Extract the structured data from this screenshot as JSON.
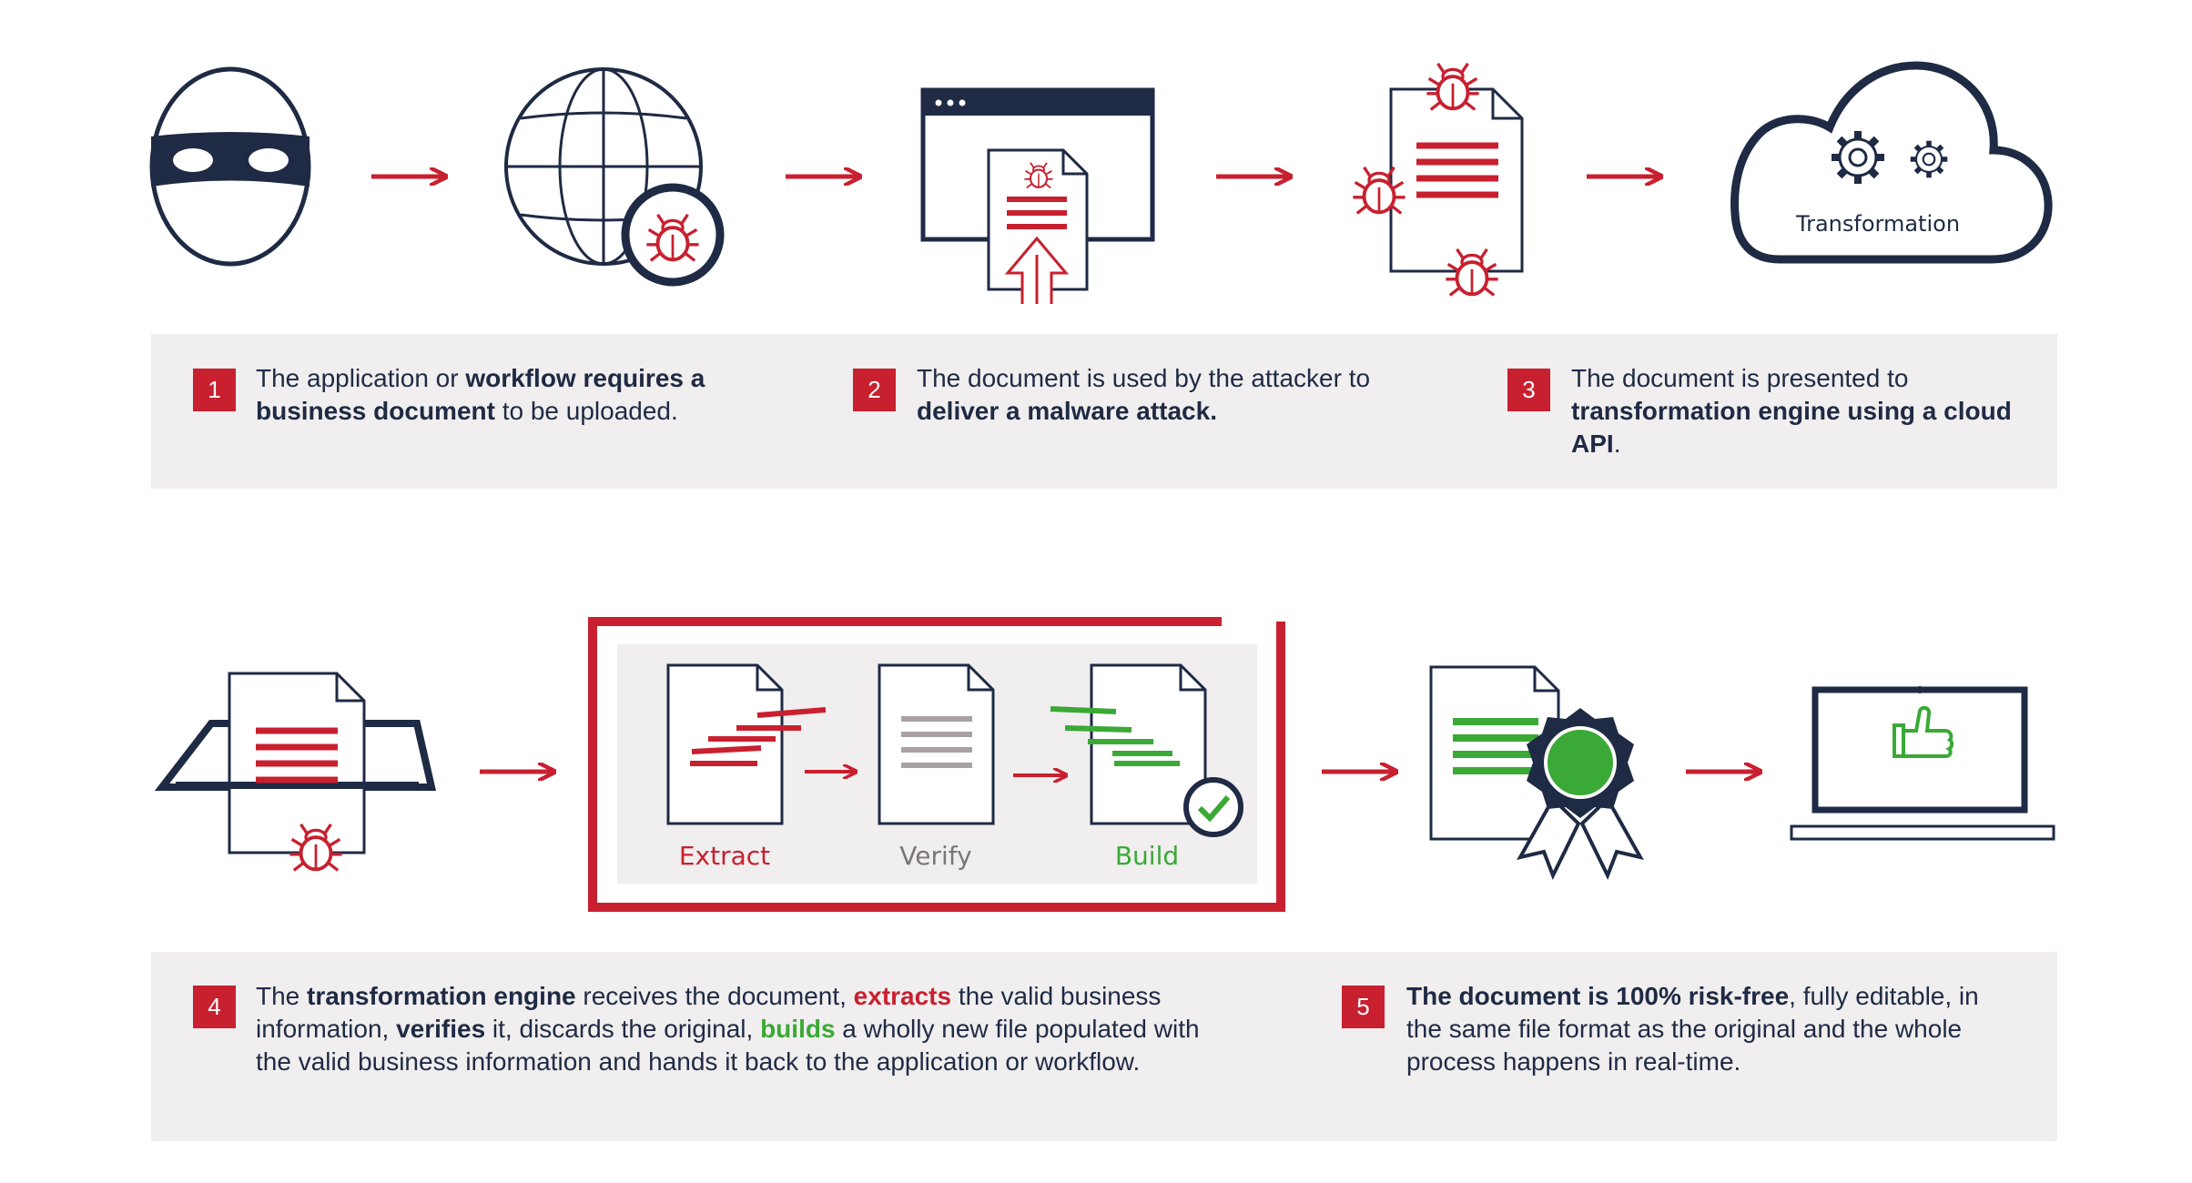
{
  "cloud": {
    "label": "Transformation"
  },
  "process": {
    "extract": "Extract",
    "verify": "Verify",
    "build": "Build"
  },
  "steps": [
    {
      "num": "1",
      "parts": [
        {
          "t": "The application or ",
          "s": "n"
        },
        {
          "t": "workflow requires a business document",
          "s": "b"
        },
        {
          "t": " to be uploaded.",
          "s": "n"
        }
      ]
    },
    {
      "num": "2",
      "parts": [
        {
          "t": "The document is used by the attacker to ",
          "s": "n"
        },
        {
          "t": "deliver a malware attack.",
          "s": "b"
        }
      ]
    },
    {
      "num": "3",
      "parts": [
        {
          "t": "The document is presented to ",
          "s": "n"
        },
        {
          "t": "transformation engine using a cloud API",
          "s": "b"
        },
        {
          "t": ".",
          "s": "n"
        }
      ]
    },
    {
      "num": "4",
      "parts": [
        {
          "t": "The ",
          "s": "n"
        },
        {
          "t": "transformation engine",
          "s": "b"
        },
        {
          "t": " receives the document, ",
          "s": "n"
        },
        {
          "t": "extracts",
          "s": "r"
        },
        {
          "t": "  the valid business information, ",
          "s": "n"
        },
        {
          "t": "verifies",
          "s": "b"
        },
        {
          "t": " it, discards the original, ",
          "s": "n"
        },
        {
          "t": "builds",
          "s": "g"
        },
        {
          "t": " a wholly new file populated with the valid business information and hands it back to the application or workflow.",
          "s": "n"
        }
      ]
    },
    {
      "num": "5",
      "parts": [
        {
          "t": "The document is 100% risk-free",
          "s": "b"
        },
        {
          "t": ", fully editable, in the same file format as the original and the whole process happens in real-time.",
          "s": "n"
        }
      ]
    }
  ],
  "colors": {
    "navy": "#1f2a44",
    "red": "#c8202f",
    "green": "#3aa935",
    "gray": "#a9a2a2",
    "panel": "#f0eeee"
  }
}
